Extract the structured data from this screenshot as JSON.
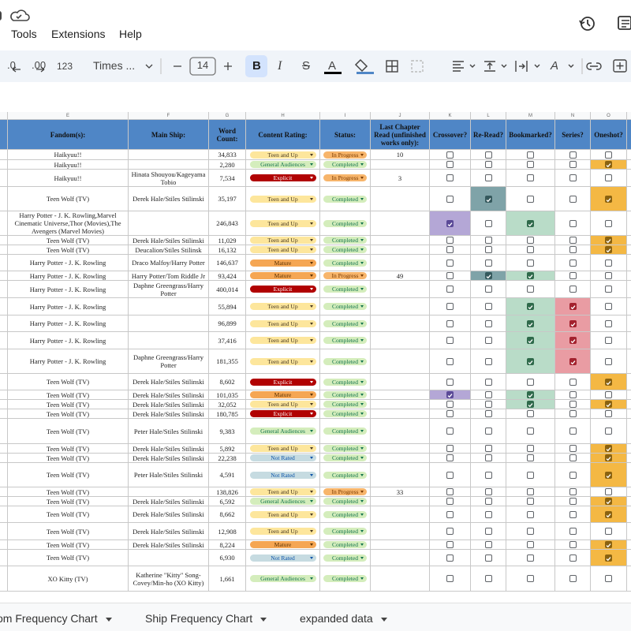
{
  "menu": [
    "Tools",
    "Extensions",
    "Help"
  ],
  "toolbar": {
    "decrease_decimal": ".0",
    "increase_decimal": ".00",
    "number_format": "123",
    "font": "Times ...",
    "font_size": "14",
    "bold": "B",
    "italic": "I",
    "strike": "S",
    "text_color": "A",
    "text_rotation": "A"
  },
  "column_letters": [
    "E",
    "F",
    "G",
    "H",
    "I",
    "J",
    "K",
    "L",
    "M",
    "N",
    "O"
  ],
  "headers": [
    "Fandom(s):",
    "Main Ship:",
    "Word Count:",
    "Content Rating:",
    "Status:",
    "Last Chapter Read (unfinished works only):",
    "Crossover?",
    "Re-Read?",
    "Bookmarked?",
    "Series?",
    "Oneshot?"
  ],
  "rating_colors": {
    "Teen and Up": [
      "#fde69c",
      "#473821"
    ],
    "General Audiences": [
      "#d4edbc",
      "#11734b"
    ],
    "Explicit": [
      "#b10202",
      "#ffffff"
    ],
    "Mature": [
      "#f5a653",
      "#5a3000"
    ],
    "Not Rated": [
      "#c6dbe1",
      "#0a53a8"
    ]
  },
  "status_colors": {
    "Completed": [
      "#d4edbc",
      "#11734b"
    ],
    "In Progress": [
      "#f7b56b",
      "#7a3a00"
    ]
  },
  "check_colors": [
    [
      "#b4a7d6",
      "#5b4a97"
    ],
    [
      "#7fa3a8",
      "#35595d"
    ],
    [
      "#b9dcc8",
      "#2f6a4b"
    ],
    [
      "#e99ca3",
      "#a3222e"
    ],
    [
      "#f4b844",
      "#8a6210"
    ]
  ],
  "rows": [
    {
      "fandom": "Haikyuu!!",
      "words": "34,833",
      "rating": "Teen and Up",
      "status": "In Progress",
      "last": 10,
      "checks": [
        false,
        false,
        false,
        false,
        false
      ]
    },
    {
      "fandom": "Haikyuu!!",
      "words": "2,280",
      "rating": "General Audiences",
      "status": "Completed",
      "checks": [
        false,
        false,
        false,
        false,
        true
      ]
    },
    {
      "fandom": "Haikyuu!!",
      "ship": "Hinata Shouyou/Kageyama Tobio",
      "words": "7,534",
      "rating": "Explicit",
      "status": "In Progress",
      "last": 3,
      "checks": [
        false,
        false,
        false,
        false,
        false
      ]
    },
    {
      "fandom": "Teen Wolf (TV)",
      "ship": "Derek Hale/Stiles Stilinski",
      "words": "35,197",
      "rating": "Teen and Up",
      "status": "Completed",
      "checks": [
        false,
        true,
        false,
        false,
        true
      ]
    },
    {
      "fandom": "Harry Potter - J. K. Rowling,Marvel Cinematic Universe,Thor (Movies),The Avengers (Marvel Movies)",
      "words": "246,843",
      "rating": "Teen and Up",
      "status": "Completed",
      "checks": [
        true,
        false,
        true,
        false,
        false
      ]
    },
    {
      "fandom": "Teen Wolf (TV)",
      "ship": "Derek Hale/Stiles Stilinski",
      "words": "11,029",
      "rating": "Teen and Up",
      "status": "Completed",
      "checks": [
        false,
        false,
        false,
        false,
        true
      ]
    },
    {
      "fandom": "Teen Wolf (TV)",
      "ship": "Deucalion/Stiles Stilinsk",
      "words": "16,132",
      "rating": "Teen and Up",
      "status": "Completed",
      "checks": [
        false,
        false,
        false,
        false,
        true
      ]
    },
    {
      "fandom": "Harry Potter - J. K. Rowling",
      "ship": "Draco Malfoy/Harry Potter",
      "words": "146,637",
      "rating": "Mature",
      "status": "Completed",
      "checks": [
        false,
        false,
        false,
        false,
        false
      ]
    },
    {
      "fandom": "Harry Potter - J. K. Rowling",
      "ship": "Harry Potter/Tom Riddle Jr",
      "words": "93,424",
      "rating": "Mature",
      "status": "In Progress",
      "last": 49,
      "checks": [
        false,
        true,
        true,
        false,
        false
      ]
    },
    {
      "fandom": "Harry Potter - J. K. Rowling",
      "ship": "Daphne Greengrass/Harry Potter",
      "words": "400,014",
      "rating": "Explicit",
      "status": "Completed",
      "checks": [
        false,
        false,
        false,
        false,
        false
      ]
    },
    {
      "fandom": "Harry Potter - J. K. Rowling",
      "words": "55,894",
      "rating": "Teen and Up",
      "status": "Completed",
      "checks": [
        false,
        false,
        true,
        true,
        false
      ]
    },
    {
      "fandom": "Harry Potter - J. K. Rowling",
      "words": "96,899",
      "rating": "Teen and Up",
      "status": "Completed",
      "checks": [
        false,
        false,
        true,
        true,
        false
      ]
    },
    {
      "fandom": "Harry Potter - J. K. Rowling",
      "words": "37,416",
      "rating": "Teen and Up",
      "status": "Completed",
      "checks": [
        false,
        false,
        true,
        true,
        false
      ]
    },
    {
      "fandom": "Harry Potter - J. K. Rowling",
      "ship": "Daphne Greengrass/Harry Potter",
      "words": "181,355",
      "rating": "Teen and Up",
      "status": "Completed",
      "checks": [
        false,
        false,
        true,
        true,
        false
      ]
    },
    {
      "fandom": "Teen Wolf (TV)",
      "ship": "Derek Hale/Stiles Stilinski",
      "words": "8,602",
      "rating": "Explicit",
      "status": "Completed",
      "checks": [
        false,
        false,
        false,
        false,
        true
      ]
    },
    {
      "fandom": "Teen Wolf (TV)",
      "ship": "Derek Hale/Stiles Stilinski",
      "words": "101,035",
      "rating": "Mature",
      "status": "Completed",
      "checks": [
        true,
        false,
        true,
        false,
        false
      ]
    },
    {
      "fandom": "Teen Wolf (TV)",
      "ship": "Derek Hale/Stiles Stilinski",
      "words": "32,052",
      "rating": "Teen and Up",
      "status": "Completed",
      "checks": [
        false,
        false,
        true,
        false,
        true
      ]
    },
    {
      "fandom": "Teen Wolf (TV)",
      "ship": "Derek Hale/Stiles Stilinski",
      "words": "180,785",
      "rating": "Explicit",
      "status": "Completed",
      "checks": [
        false,
        false,
        false,
        false,
        false
      ]
    },
    {
      "fandom": "Teen Wolf (TV)",
      "ship": "Peter Hale/Stiles Stilinski",
      "words": "9,383",
      "rating": "General Audiences",
      "status": "Completed",
      "checks": [
        false,
        false,
        false,
        false,
        false
      ]
    },
    {
      "fandom": "Teen Wolf (TV)",
      "ship": "Derek Hale/Stiles Stilinski",
      "words": "5,892",
      "rating": "Teen and Up",
      "status": "Completed",
      "checks": [
        false,
        false,
        false,
        false,
        true
      ]
    },
    {
      "fandom": "Teen Wolf (TV)",
      "ship": "Derek Hale/Stiles Stilinski",
      "words": "22,238",
      "rating": "Not Rated",
      "status": "Completed",
      "checks": [
        false,
        false,
        false,
        false,
        true
      ]
    },
    {
      "fandom": "Teen Wolf (TV)",
      "ship": "Peter Hale/Stiles Stilinski",
      "words": "4,591",
      "rating": "Not Rated",
      "status": "Completed",
      "checks": [
        false,
        false,
        false,
        false,
        true
      ]
    },
    {
      "fandom": "Teen Wolf (TV)",
      "words": "138,826",
      "rating": "Teen and Up",
      "status": "In Progress",
      "last": 33,
      "checks": [
        false,
        false,
        false,
        false,
        false
      ]
    },
    {
      "fandom": "Teen Wolf (TV)",
      "ship": "Derek Hale/Stiles Stilinski",
      "words": "6,592",
      "rating": "General Audiences",
      "status": "Completed",
      "checks": [
        false,
        false,
        false,
        false,
        true
      ]
    },
    {
      "fandom": "Teen Wolf (TV)",
      "ship": "Derek Hale/Stiles Stilinski",
      "words": "8,662",
      "rating": "Teen and Up",
      "status": "Completed",
      "checks": [
        false,
        false,
        false,
        false,
        true
      ]
    },
    {
      "fandom": "Teen Wolf (TV)",
      "ship": "Derek Hale/Stiles Stilinski",
      "words": "12,908",
      "rating": "Teen and Up",
      "status": "Completed",
      "checks": [
        false,
        false,
        false,
        false,
        false
      ]
    },
    {
      "fandom": "Teen Wolf (TV)",
      "ship": "Derek Hale/Stiles Stilinski",
      "words": "8,224",
      "rating": "Mature",
      "status": "Completed",
      "checks": [
        false,
        false,
        false,
        false,
        true
      ]
    },
    {
      "fandom": "Teen Wolf (TV)",
      "words": "6,930",
      "rating": "Not Rated",
      "status": "Completed",
      "checks": [
        false,
        false,
        false,
        false,
        true
      ]
    },
    {
      "fandom": "XO Kitty (TV)",
      "ship": "Katherine \"Kitty\" Song-Covey/Min-ho (XO Kitty)",
      "words": "1,661",
      "rating": "General Audiences",
      "status": "Completed",
      "checks": [
        false,
        false,
        false,
        false,
        false
      ]
    }
  ],
  "tabs": [
    "om Frequency Chart",
    "Ship Frequency Chart",
    "expanded data"
  ]
}
